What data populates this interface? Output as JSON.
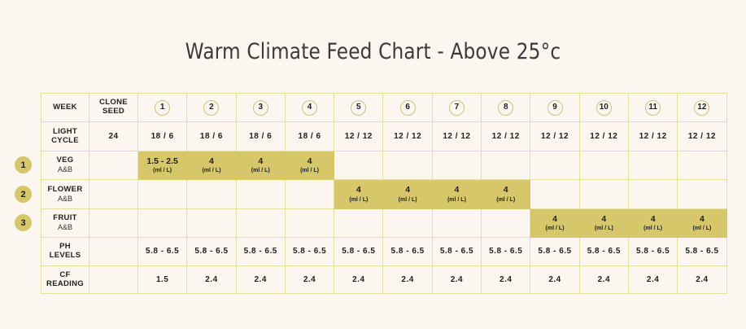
{
  "title": "Warm Climate Feed Chart - Above 25°c",
  "header": {
    "week_label": "WEEK",
    "clone_label_1": "CLONE",
    "clone_label_2": "SEED",
    "weeks": [
      "1",
      "2",
      "3",
      "4",
      "5",
      "6",
      "7",
      "8",
      "9",
      "10",
      "11",
      "12"
    ]
  },
  "light": {
    "label_1": "LIGHT",
    "label_2": "CYCLE",
    "clone": "24",
    "values": [
      "18 / 6",
      "18 / 6",
      "18 / 6",
      "18 / 6",
      "12 / 12",
      "12 / 12",
      "12 / 12",
      "12 / 12",
      "12 / 12",
      "12 / 12",
      "12 / 12",
      "12 / 12"
    ]
  },
  "unit": "(ml / L)",
  "stages": [
    {
      "badge": "1",
      "name": "VEG",
      "sub": "A&B",
      "doses": [
        "1.5 - 2.5",
        "4",
        "4",
        "4",
        "",
        "",
        "",
        "",
        "",
        "",
        "",
        ""
      ]
    },
    {
      "badge": "2",
      "name": "FLOWER",
      "sub": "A&B",
      "doses": [
        "",
        "",
        "",
        "",
        "4",
        "4",
        "4",
        "4",
        "",
        "",
        "",
        ""
      ]
    },
    {
      "badge": "3",
      "name": "FRUIT",
      "sub": "A&B",
      "doses": [
        "",
        "",
        "",
        "",
        "",
        "",
        "",
        "",
        "4",
        "4",
        "4",
        "4"
      ]
    }
  ],
  "ph": {
    "label_1": "PH",
    "label_2": "LEVELS",
    "values": [
      "5.8 - 6.5",
      "5.8 - 6.5",
      "5.8 - 6.5",
      "5.8 - 6.5",
      "5.8 - 6.5",
      "5.8 - 6.5",
      "5.8 - 6.5",
      "5.8 - 6.5",
      "5.8 - 6.5",
      "5.8 - 6.5",
      "5.8 - 6.5",
      "5.8 - 6.5"
    ]
  },
  "cf": {
    "label_1": "CF",
    "label_2": "READING",
    "values": [
      "1.5",
      "2.4",
      "2.4",
      "2.4",
      "2.4",
      "2.4",
      "2.4",
      "2.4",
      "2.4",
      "2.4",
      "2.4",
      "2.4"
    ]
  },
  "colors": {
    "background": "#fbf6ef",
    "accent": "#d6c76a",
    "gridline": "#e6df9e"
  }
}
